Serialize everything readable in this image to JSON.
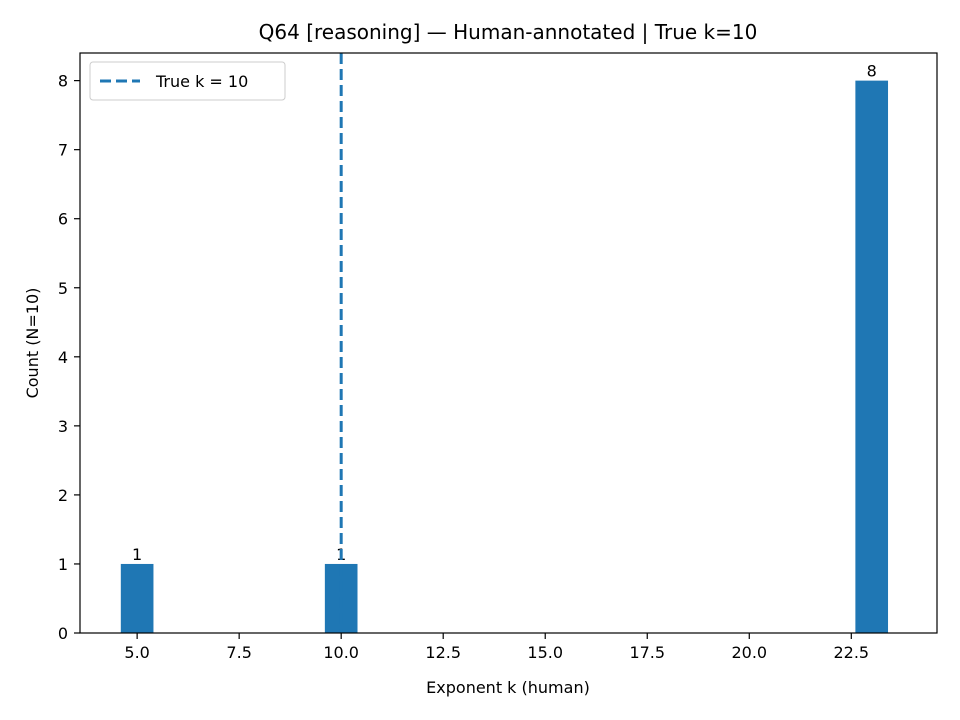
{
  "chart_data": {
    "type": "bar",
    "title": "Q64 [reasoning] — Human-annotated | True k=10",
    "xlabel": "Exponent k (human)",
    "ylabel": "Count (N=10)",
    "xlim": [
      3.6,
      24.6
    ],
    "ylim": [
      0,
      8.4
    ],
    "x_ticks": [
      5.0,
      7.5,
      10.0,
      12.5,
      15.0,
      17.5,
      20.0,
      22.5
    ],
    "x_tick_labels": [
      "5.0",
      "7.5",
      "10.0",
      "12.5",
      "15.0",
      "17.5",
      "20.0",
      "22.5"
    ],
    "y_ticks": [
      0,
      1,
      2,
      3,
      4,
      5,
      6,
      7,
      8
    ],
    "y_tick_labels": [
      "0",
      "1",
      "2",
      "3",
      "4",
      "5",
      "6",
      "7",
      "8"
    ],
    "bar_width": 0.8,
    "bars": [
      {
        "x": 5,
        "value": 1,
        "label": "1"
      },
      {
        "x": 10,
        "value": 1,
        "label": "1"
      },
      {
        "x": 23,
        "value": 8,
        "label": "8"
      }
    ],
    "reference_line": {
      "x": 10,
      "style": "dashed",
      "label": "True k = 10"
    },
    "legend": {
      "position": "top-left",
      "entries": [
        "True k = 10"
      ]
    },
    "grid": false,
    "colors": {
      "bar": "#1f77b4",
      "line": "#1f77b4",
      "axis": "#000000"
    }
  }
}
